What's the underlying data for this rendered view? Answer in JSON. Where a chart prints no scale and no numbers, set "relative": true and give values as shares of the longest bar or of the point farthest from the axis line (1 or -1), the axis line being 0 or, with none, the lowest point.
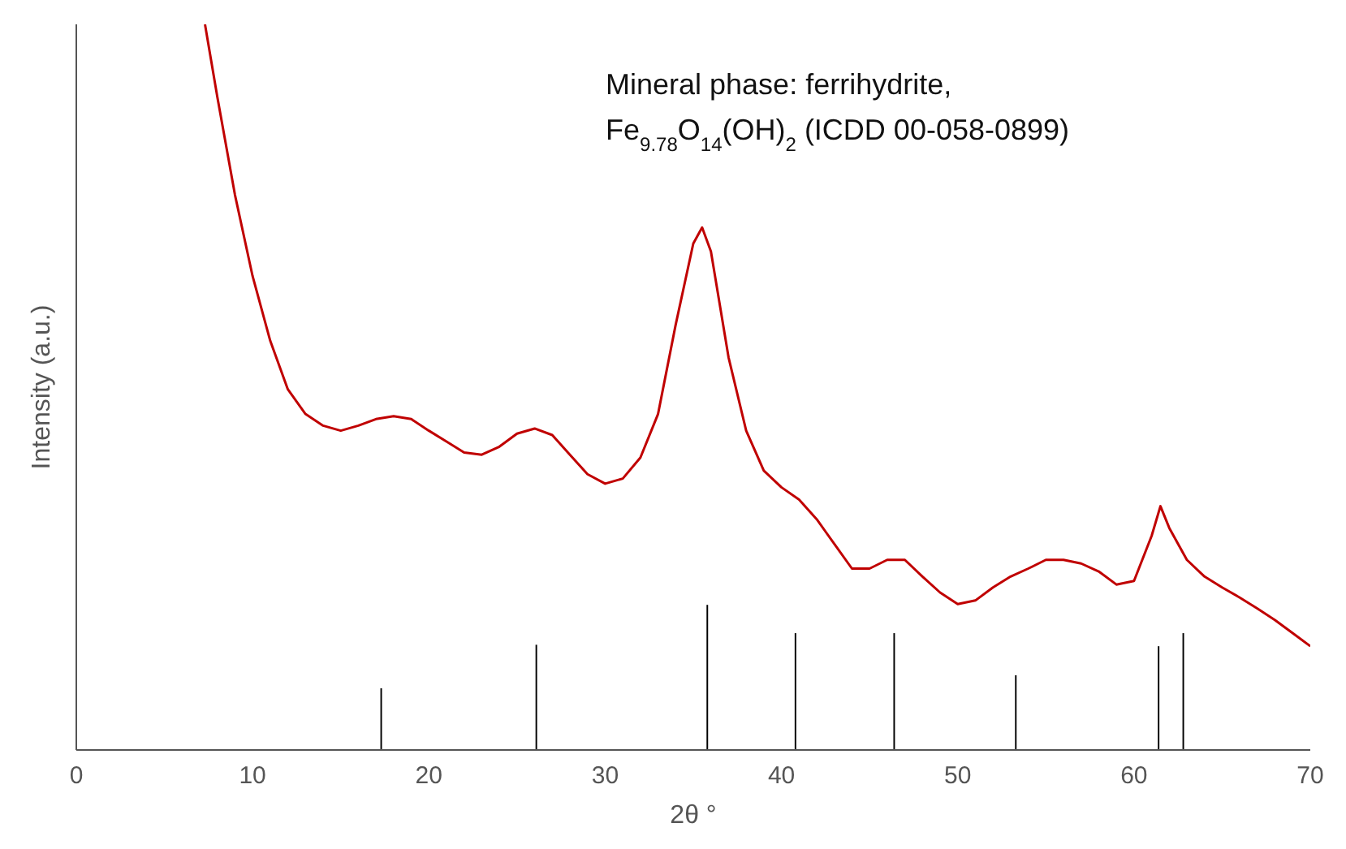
{
  "chart_data": {
    "type": "line",
    "relative": true,
    "xlabel": "2θ °",
    "ylabel": "Intensity (a.u.)",
    "xlim": [
      0,
      70
    ],
    "xticks": [
      0,
      10,
      20,
      30,
      40,
      50,
      60,
      70
    ],
    "marker": "none",
    "annotations": [
      "Mineral phase: ferrihydrite,",
      "Fe$_{9.78}$O$_{14}$(OH)$_{2}$ (ICDD 00-058-0899)"
    ],
    "series": [
      {
        "color": "#c00000",
        "x": [
          7.3,
          8,
          9,
          10,
          11,
          12,
          13,
          14,
          15,
          16,
          17,
          18,
          19,
          20,
          21,
          22,
          23,
          24,
          25,
          26,
          27,
          28,
          29,
          30,
          31,
          32,
          33,
          34,
          35,
          35.5,
          36,
          37,
          38,
          39,
          40,
          41,
          42,
          43,
          44,
          45,
          46,
          47,
          48,
          49,
          50,
          51,
          52,
          53,
          54,
          55,
          56,
          57,
          58,
          59,
          60,
          61,
          61.5,
          62,
          63,
          64,
          65,
          66,
          67,
          68,
          69,
          70
        ],
        "values": [
          1.0,
          0.9,
          0.765,
          0.653,
          0.564,
          0.497,
          0.463,
          0.447,
          0.44,
          0.447,
          0.456,
          0.46,
          0.456,
          0.44,
          0.425,
          0.41,
          0.407,
          0.418,
          0.436,
          0.443,
          0.434,
          0.407,
          0.38,
          0.367,
          0.374,
          0.403,
          0.463,
          0.586,
          0.698,
          0.72,
          0.687,
          0.541,
          0.44,
          0.385,
          0.362,
          0.345,
          0.318,
          0.284,
          0.25,
          0.25,
          0.262,
          0.262,
          0.239,
          0.217,
          0.201,
          0.206,
          0.224,
          0.239,
          0.25,
          0.262,
          0.262,
          0.257,
          0.246,
          0.228,
          0.233,
          0.295,
          0.336,
          0.306,
          0.262,
          0.239,
          0.224,
          0.21,
          0.195,
          0.179,
          0.161,
          0.143
        ]
      },
      {
        "type": "bar",
        "color": "#000000",
        "x": [
          17.3,
          26.1,
          35.8,
          40.8,
          46.4,
          53.3,
          61.4,
          62.8
        ],
        "values": [
          0.085,
          0.145,
          0.2,
          0.161,
          0.161,
          0.103,
          0.143,
          0.161
        ]
      }
    ]
  }
}
